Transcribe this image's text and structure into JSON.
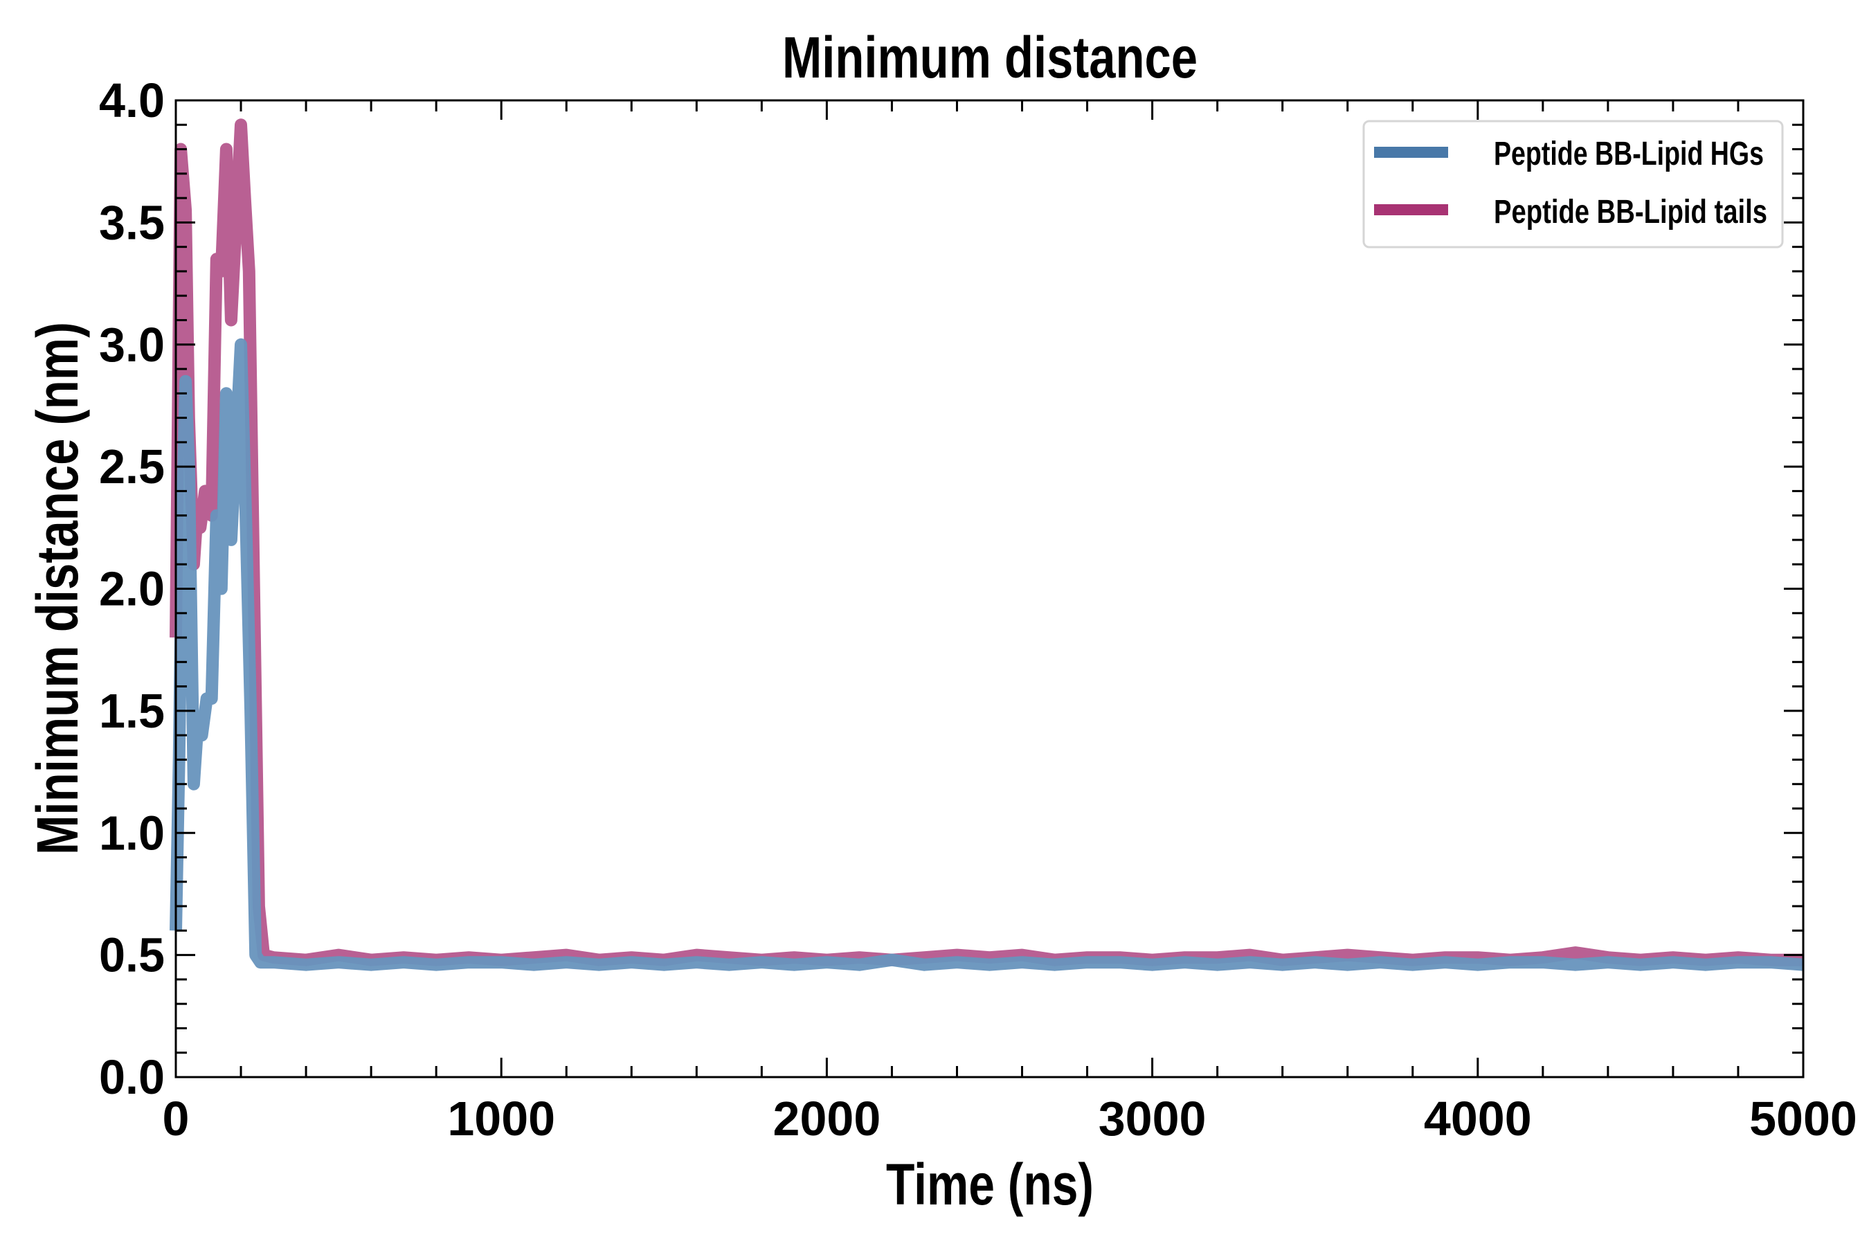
{
  "chart_data": {
    "type": "line",
    "title": "Minimum distance",
    "xlabel": "Time (ns)",
    "ylabel": "Minimum distance (nm)",
    "xlim": [
      0,
      5000
    ],
    "ylim": [
      0.0,
      4.0
    ],
    "xticks": [
      "0",
      "1000",
      "2000",
      "3000",
      "4000",
      "5000"
    ],
    "yticks": [
      "0.0",
      "0.5",
      "1.0",
      "1.5",
      "2.0",
      "2.5",
      "3.0",
      "3.5",
      "4.0"
    ],
    "grid": false,
    "legend_position": "top-right",
    "series": [
      {
        "name": "Peptide BB-Lipid tails",
        "color": "#b5578d",
        "legend_color": "#a83373",
        "x": [
          0,
          15,
          30,
          40,
          55,
          65,
          75,
          90,
          110,
          125,
          140,
          155,
          170,
          185,
          200,
          212,
          225,
          240,
          255,
          270,
          300,
          400,
          500,
          600,
          700,
          800,
          900,
          1000,
          1100,
          1200,
          1300,
          1400,
          1500,
          1600,
          1700,
          1800,
          1900,
          2000,
          2100,
          2200,
          2300,
          2400,
          2500,
          2600,
          2700,
          2800,
          2900,
          3000,
          3100,
          3200,
          3300,
          3400,
          3500,
          3600,
          3700,
          3800,
          3900,
          4000,
          4100,
          4200,
          4300,
          4400,
          4500,
          4600,
          4700,
          4800,
          4900,
          5000
        ],
        "y": [
          1.8,
          3.8,
          3.55,
          2.7,
          2.1,
          2.3,
          2.25,
          2.4,
          2.3,
          3.35,
          3.3,
          3.8,
          3.1,
          3.5,
          3.9,
          3.6,
          3.3,
          2.0,
          0.7,
          0.5,
          0.49,
          0.48,
          0.5,
          0.48,
          0.49,
          0.48,
          0.49,
          0.48,
          0.49,
          0.5,
          0.48,
          0.49,
          0.48,
          0.5,
          0.49,
          0.48,
          0.49,
          0.48,
          0.49,
          0.48,
          0.49,
          0.5,
          0.49,
          0.5,
          0.48,
          0.49,
          0.49,
          0.48,
          0.49,
          0.49,
          0.5,
          0.48,
          0.49,
          0.5,
          0.49,
          0.48,
          0.49,
          0.49,
          0.48,
          0.49,
          0.51,
          0.49,
          0.48,
          0.49,
          0.48,
          0.49,
          0.48,
          0.48
        ]
      },
      {
        "name": "Peptide BB-Lipid HGs",
        "color": "#6794bd",
        "legend_color": "#4878a8",
        "x": [
          0,
          10,
          20,
          30,
          40,
          55,
          65,
          80,
          95,
          110,
          125,
          140,
          155,
          170,
          185,
          200,
          215,
          230,
          245,
          260,
          280,
          300,
          400,
          500,
          600,
          700,
          800,
          900,
          1000,
          1100,
          1200,
          1300,
          1400,
          1500,
          1600,
          1700,
          1800,
          1900,
          2000,
          2100,
          2200,
          2300,
          2400,
          2500,
          2600,
          2700,
          2800,
          2900,
          3000,
          3100,
          3200,
          3300,
          3400,
          3500,
          3600,
          3700,
          3800,
          3900,
          4000,
          4100,
          4200,
          4300,
          4400,
          4500,
          4600,
          4700,
          4800,
          4900,
          5000
        ],
        "y": [
          0.6,
          1.3,
          2.3,
          2.85,
          2.5,
          1.2,
          1.4,
          1.4,
          1.55,
          1.55,
          2.3,
          2.0,
          2.8,
          2.2,
          2.6,
          3.0,
          2.3,
          1.5,
          0.5,
          0.47,
          0.47,
          0.47,
          0.46,
          0.47,
          0.46,
          0.47,
          0.46,
          0.47,
          0.47,
          0.46,
          0.47,
          0.46,
          0.47,
          0.46,
          0.47,
          0.46,
          0.47,
          0.46,
          0.47,
          0.46,
          0.48,
          0.46,
          0.47,
          0.46,
          0.47,
          0.46,
          0.47,
          0.47,
          0.46,
          0.47,
          0.46,
          0.47,
          0.46,
          0.47,
          0.46,
          0.47,
          0.46,
          0.47,
          0.46,
          0.47,
          0.47,
          0.46,
          0.47,
          0.46,
          0.47,
          0.46,
          0.47,
          0.47,
          0.46
        ]
      }
    ]
  }
}
